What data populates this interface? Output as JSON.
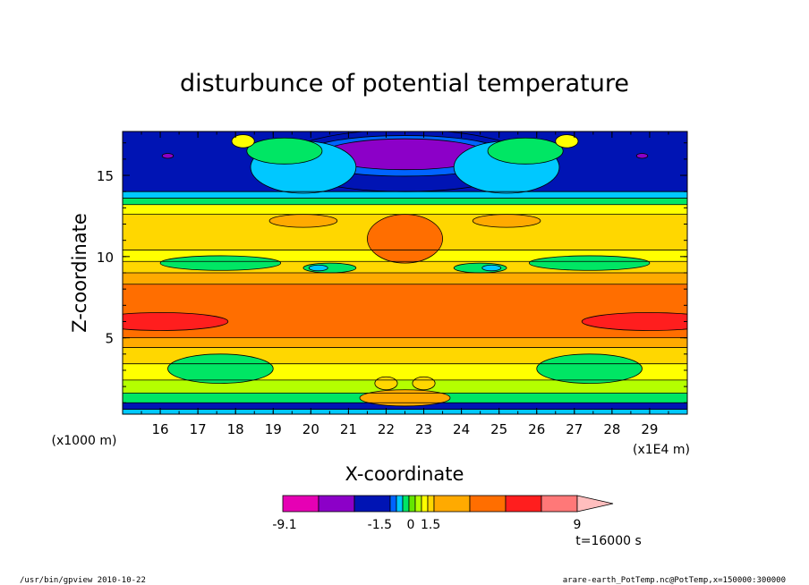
{
  "chart_data": {
    "type": "heatmap",
    "title": "disturbunce of potential temperature",
    "xlabel": "X-coordinate",
    "ylabel": "Z-coordinate",
    "x_unit_label": "(x1E4 m)",
    "y_unit_label": "(x1000 m)",
    "xlim": [
      15.0,
      30.0
    ],
    "ylim": [
      0.3,
      17.7
    ],
    "x_ticks": [
      16,
      17,
      18,
      19,
      20,
      21,
      22,
      23,
      24,
      25,
      26,
      27,
      28,
      29
    ],
    "y_ticks": [
      5,
      10,
      15
    ],
    "colorbar": {
      "colors": [
        "#e600b4",
        "#8c00c8",
        "#0014b4",
        "#0064ff",
        "#00c8ff",
        "#00e664",
        "#64e600",
        "#b4ff00",
        "#ffff00",
        "#ffd700",
        "#ffaa00",
        "#ff6e00",
        "#ff1e1e",
        "#ff7878",
        "#ffbebe"
      ],
      "tick_labels": [
        "-9.1",
        "-1.5",
        "0",
        "1.5",
        "9"
      ]
    },
    "time_label": "t=16000 s",
    "bands": [
      {
        "z": [
          0.3,
          0.6
        ],
        "color": "#00c8ff"
      },
      {
        "z": [
          0.6,
          1.0
        ],
        "color": "#0014b4"
      },
      {
        "z": [
          1.0,
          1.6
        ],
        "color": "#00e664"
      },
      {
        "z": [
          1.6,
          2.4
        ],
        "color": "#b4ff00"
      },
      {
        "z": [
          2.4,
          3.4
        ],
        "color": "#ffff00"
      },
      {
        "z": [
          3.4,
          4.4
        ],
        "color": "#ffd700"
      },
      {
        "z": [
          4.4,
          5.0
        ],
        "color": "#ffaa00"
      },
      {
        "z": [
          5.0,
          8.3
        ],
        "color": "#ff6e00"
      },
      {
        "z": [
          8.3,
          9.0
        ],
        "color": "#ffaa00"
      },
      {
        "z": [
          9.0,
          9.7
        ],
        "color": "#ffd700"
      },
      {
        "z": [
          9.7,
          10.4
        ],
        "color": "#ffff00"
      },
      {
        "z": [
          10.4,
          12.6
        ],
        "color": "#ffd700"
      },
      {
        "z": [
          12.6,
          13.2
        ],
        "color": "#ffff00"
      },
      {
        "z": [
          13.2,
          13.6
        ],
        "color": "#00e664"
      },
      {
        "z": [
          13.6,
          14.0
        ],
        "color": "#00c8ff"
      },
      {
        "z": [
          14.0,
          17.7
        ],
        "color": "#0014b4"
      }
    ],
    "features": [
      {
        "kind": "ellipse",
        "x": 22.5,
        "z": 16.1,
        "rx": 2.9,
        "rz": 1.5,
        "color": "#00c8ff"
      },
      {
        "kind": "ellipse",
        "x": 22.5,
        "z": 15.9,
        "rx": 3.3,
        "rz": 1.9,
        "color": "#0014b4"
      },
      {
        "kind": "ellipse",
        "x": 22.5,
        "z": 16.2,
        "rx": 2.8,
        "rz": 1.25,
        "color": "#0064ff"
      },
      {
        "kind": "ellipse",
        "x": 22.5,
        "z": 16.3,
        "rx": 2.2,
        "rz": 0.95,
        "color": "#8c00c8"
      },
      {
        "kind": "ellipse",
        "x": 19.8,
        "z": 15.5,
        "rx": 1.4,
        "rz": 1.6,
        "color": "#00c8ff"
      },
      {
        "kind": "ellipse",
        "x": 25.2,
        "z": 15.5,
        "rx": 1.4,
        "rz": 1.6,
        "color": "#00c8ff"
      },
      {
        "kind": "ellipse",
        "x": 19.3,
        "z": 16.5,
        "rx": 1.0,
        "rz": 0.8,
        "color": "#00e664"
      },
      {
        "kind": "ellipse",
        "x": 25.7,
        "z": 16.5,
        "rx": 1.0,
        "rz": 0.8,
        "color": "#00e664"
      },
      {
        "kind": "ellipse",
        "x": 18.2,
        "z": 17.1,
        "rx": 0.3,
        "rz": 0.4,
        "color": "#ffff00"
      },
      {
        "kind": "ellipse",
        "x": 26.8,
        "z": 17.1,
        "rx": 0.3,
        "rz": 0.4,
        "color": "#ffff00"
      },
      {
        "kind": "ellipse",
        "x": 16.2,
        "z": 16.2,
        "rx": 0.15,
        "rz": 0.15,
        "color": "#8c00c8"
      },
      {
        "kind": "ellipse",
        "x": 28.8,
        "z": 16.2,
        "rx": 0.15,
        "rz": 0.15,
        "color": "#8c00c8"
      },
      {
        "kind": "ellipse",
        "x": 22.5,
        "z": 11.1,
        "rx": 1.0,
        "rz": 1.5,
        "color": "#ff6e00"
      },
      {
        "kind": "ellipse",
        "x": 19.8,
        "z": 12.2,
        "rx": 0.9,
        "rz": 0.4,
        "color": "#ffaa00"
      },
      {
        "kind": "ellipse",
        "x": 25.2,
        "z": 12.2,
        "rx": 0.9,
        "rz": 0.4,
        "color": "#ffaa00"
      },
      {
        "kind": "ellipse",
        "x": 17.6,
        "z": 9.6,
        "rx": 1.6,
        "rz": 0.45,
        "color": "#00e664"
      },
      {
        "kind": "ellipse",
        "x": 27.4,
        "z": 9.6,
        "rx": 1.6,
        "rz": 0.45,
        "color": "#00e664"
      },
      {
        "kind": "ellipse",
        "x": 20.5,
        "z": 9.3,
        "rx": 0.7,
        "rz": 0.3,
        "color": "#00e664"
      },
      {
        "kind": "ellipse",
        "x": 24.5,
        "z": 9.3,
        "rx": 0.7,
        "rz": 0.3,
        "color": "#00e664"
      },
      {
        "kind": "ellipse",
        "x": 20.2,
        "z": 9.3,
        "rx": 0.25,
        "rz": 0.18,
        "color": "#00c8ff"
      },
      {
        "kind": "ellipse",
        "x": 24.8,
        "z": 9.3,
        "rx": 0.25,
        "rz": 0.18,
        "color": "#00c8ff"
      },
      {
        "kind": "ellipse",
        "x": 16.0,
        "z": 6.0,
        "rx": 1.8,
        "rz": 0.55,
        "color": "#ff1e1e"
      },
      {
        "kind": "ellipse",
        "x": 29.0,
        "z": 6.0,
        "rx": 1.8,
        "rz": 0.55,
        "color": "#ff1e1e"
      },
      {
        "kind": "ellipse",
        "x": 17.6,
        "z": 3.1,
        "rx": 1.4,
        "rz": 0.9,
        "color": "#00e664"
      },
      {
        "kind": "ellipse",
        "x": 27.4,
        "z": 3.1,
        "rx": 1.4,
        "rz": 0.9,
        "color": "#00e664"
      },
      {
        "kind": "ellipse",
        "x": 22.5,
        "z": 1.3,
        "rx": 1.2,
        "rz": 0.5,
        "color": "#ffaa00"
      },
      {
        "kind": "ellipse",
        "x": 22.0,
        "z": 2.2,
        "rx": 0.3,
        "rz": 0.4,
        "color": "#ffd700"
      },
      {
        "kind": "ellipse",
        "x": 23.0,
        "z": 2.2,
        "rx": 0.3,
        "rz": 0.4,
        "color": "#ffd700"
      }
    ]
  },
  "footer": {
    "left": "/usr/bin/gpview  2010-10-22",
    "right": "arare-earth_PotTemp.nc@PotTemp,x=150000:300000"
  }
}
